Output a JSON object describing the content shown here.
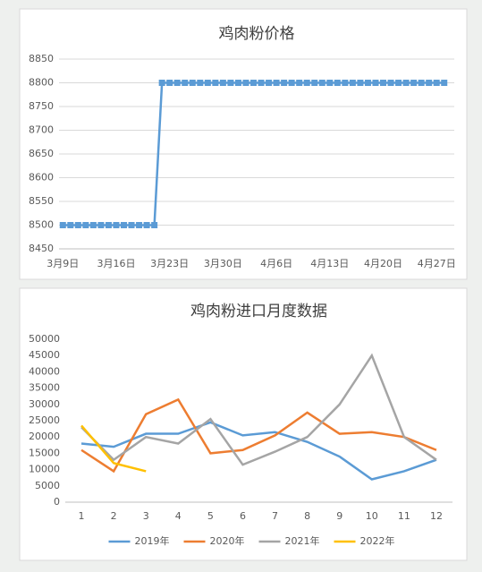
{
  "chart_data": [
    {
      "type": "line",
      "title": "鸡肉粉价格",
      "categories": [
        "3月9日",
        null,
        null,
        null,
        null,
        null,
        null,
        "3月16日",
        null,
        null,
        null,
        null,
        null,
        null,
        "3月23日",
        null,
        null,
        null,
        null,
        null,
        null,
        "3月30日",
        null,
        null,
        null,
        null,
        null,
        null,
        "4月6日",
        null,
        null,
        null,
        null,
        null,
        null,
        "4月13日",
        null,
        null,
        null,
        null,
        null,
        null,
        "4月20日",
        null,
        null,
        null,
        null,
        null,
        null,
        "4月27日",
        null
      ],
      "series": [
        {
          "name": null,
          "color": "#5b9bd5",
          "values": [
            8500,
            8500,
            8500,
            8500,
            8500,
            8500,
            8500,
            8500,
            8500,
            8500,
            8500,
            8500,
            8500,
            8800,
            8800,
            8800,
            8800,
            8800,
            8800,
            8800,
            8800,
            8800,
            8800,
            8800,
            8800,
            8800,
            8800,
            8800,
            8800,
            8800,
            8800,
            8800,
            8800,
            8800,
            8800,
            8800,
            8800,
            8800,
            8800,
            8800,
            8800,
            8800,
            8800,
            8800,
            8800,
            8800,
            8800,
            8800,
            8800,
            8800,
            8800
          ]
        }
      ],
      "markers": true,
      "ylim": [
        8450,
        8850
      ],
      "yticks": [
        8450,
        8500,
        8550,
        8600,
        8650,
        8700,
        8750,
        8800,
        8850
      ],
      "grid": true,
      "legend": false
    },
    {
      "type": "line",
      "title": "鸡肉粉进口月度数据",
      "categories": [
        "1",
        "2",
        "3",
        "4",
        "5",
        "6",
        "7",
        "8",
        "9",
        "10",
        "11",
        "12"
      ],
      "series": [
        {
          "name": "2019年",
          "color": "#5b9bd5",
          "values": [
            18000,
            17000,
            21000,
            21000,
            24500,
            20500,
            21500,
            18500,
            14000,
            7000,
            9500,
            13000
          ]
        },
        {
          "name": "2020年",
          "color": "#ed7d31",
          "values": [
            16000,
            9500,
            27000,
            31500,
            15000,
            16000,
            20500,
            27500,
            21000,
            21500,
            20000,
            16000
          ]
        },
        {
          "name": "2021年",
          "color": "#a5a5a5",
          "values": [
            23000,
            13000,
            20000,
            18000,
            25500,
            11500,
            15500,
            20000,
            30000,
            45000,
            20000,
            13000
          ]
        },
        {
          "name": "2022年",
          "color": "#ffc000",
          "values": [
            23500,
            12000,
            9500,
            null,
            null,
            null,
            null,
            null,
            null,
            null,
            null,
            null
          ]
        }
      ],
      "markers": false,
      "ylim": [
        0,
        50000
      ],
      "yticks": [
        0,
        5000,
        10000,
        15000,
        20000,
        25000,
        30000,
        35000,
        40000,
        45000,
        50000
      ],
      "grid": false,
      "legend": "bottom"
    }
  ]
}
